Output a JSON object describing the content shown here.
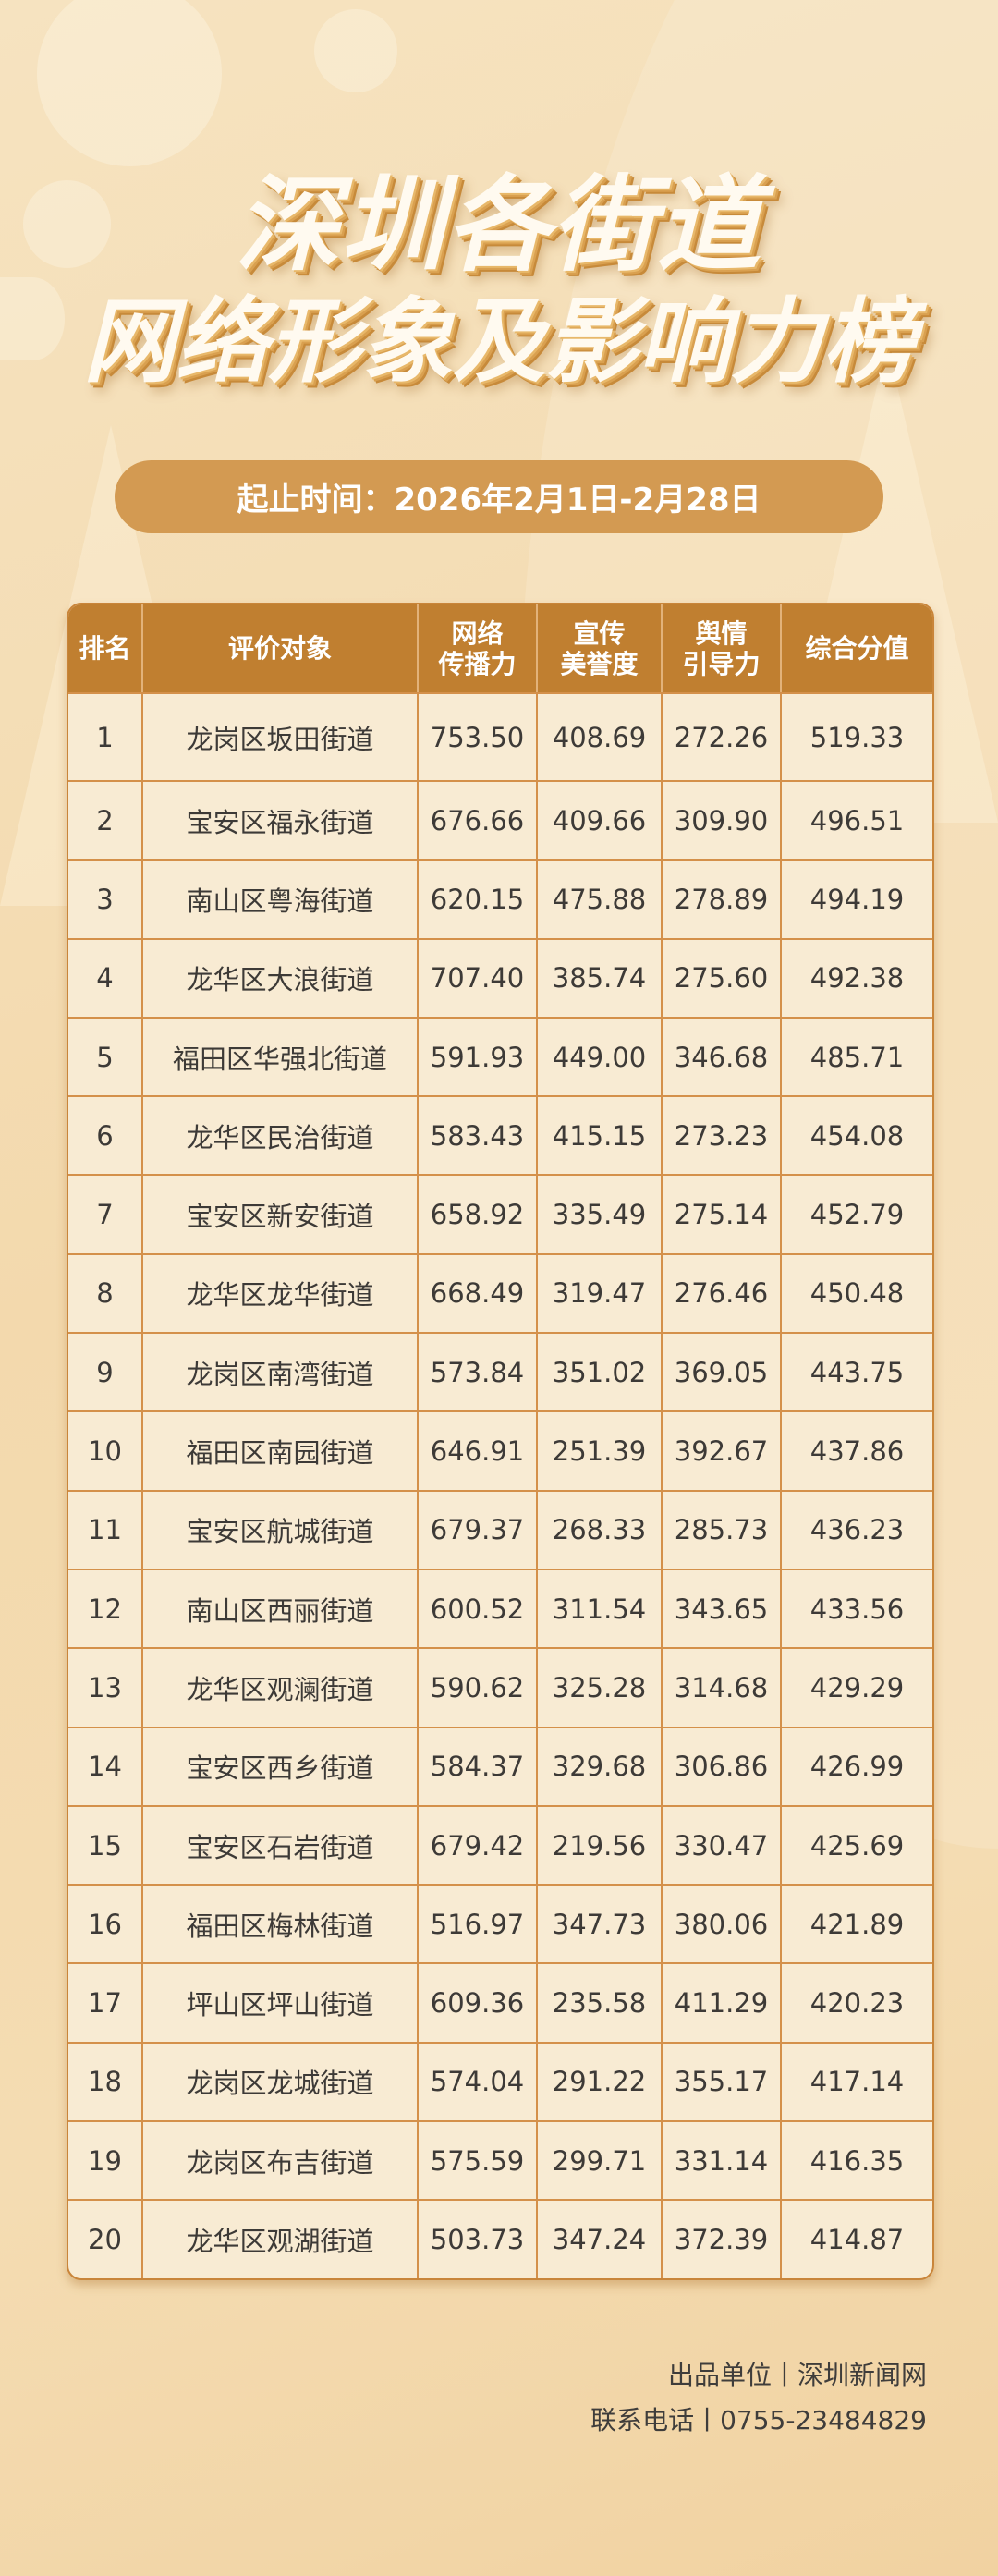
{
  "title": {
    "line1": "深圳各街道",
    "line2": "网络形象及影响力榜"
  },
  "period": "起止时间：2026年2月1日-2月28日",
  "table": {
    "headers": [
      "排名",
      "评价对象",
      "网络\n传播力",
      "宣传\n美誉度",
      "舆情\n引导力",
      "综合分值"
    ],
    "rows": [
      [
        "1",
        "龙岗区坂田街道",
        "753.50",
        "408.69",
        "272.26",
        "519.33"
      ],
      [
        "2",
        "宝安区福永街道",
        "676.66",
        "409.66",
        "309.90",
        "496.51"
      ],
      [
        "3",
        "南山区粤海街道",
        "620.15",
        "475.88",
        "278.89",
        "494.19"
      ],
      [
        "4",
        "龙华区大浪街道",
        "707.40",
        "385.74",
        "275.60",
        "492.38"
      ],
      [
        "5",
        "福田区华强北街道",
        "591.93",
        "449.00",
        "346.68",
        "485.71"
      ],
      [
        "6",
        "龙华区民治街道",
        "583.43",
        "415.15",
        "273.23",
        "454.08"
      ],
      [
        "7",
        "宝安区新安街道",
        "658.92",
        "335.49",
        "275.14",
        "452.79"
      ],
      [
        "8",
        "龙华区龙华街道",
        "668.49",
        "319.47",
        "276.46",
        "450.48"
      ],
      [
        "9",
        "龙岗区南湾街道",
        "573.84",
        "351.02",
        "369.05",
        "443.75"
      ],
      [
        "10",
        "福田区南园街道",
        "646.91",
        "251.39",
        "392.67",
        "437.86"
      ],
      [
        "11",
        "宝安区航城街道",
        "679.37",
        "268.33",
        "285.73",
        "436.23"
      ],
      [
        "12",
        "南山区西丽街道",
        "600.52",
        "311.54",
        "343.65",
        "433.56"
      ],
      [
        "13",
        "龙华区观澜街道",
        "590.62",
        "325.28",
        "314.68",
        "429.29"
      ],
      [
        "14",
        "宝安区西乡街道",
        "584.37",
        "329.68",
        "306.86",
        "426.99"
      ],
      [
        "15",
        "宝安区石岩街道",
        "679.42",
        "219.56",
        "330.47",
        "425.69"
      ],
      [
        "16",
        "福田区梅林街道",
        "516.97",
        "347.73",
        "380.06",
        "421.89"
      ],
      [
        "17",
        "坪山区坪山街道",
        "609.36",
        "235.58",
        "411.29",
        "420.23"
      ],
      [
        "18",
        "龙岗区龙城街道",
        "574.04",
        "291.22",
        "355.17",
        "417.14"
      ],
      [
        "19",
        "龙岗区布吉街道",
        "575.59",
        "299.71",
        "331.14",
        "416.35"
      ],
      [
        "20",
        "龙华区观湖街道",
        "503.73",
        "347.24",
        "372.39",
        "414.87"
      ]
    ]
  },
  "footer": {
    "producer": "出品单位丨深圳新闻网",
    "phone": "联系电话丨0755-23484829"
  },
  "colors": {
    "header_bg": "#c07f30",
    "pill_bg": "#d39a52",
    "cell_bg": "#f8ebd3",
    "border": "#d4904a"
  }
}
